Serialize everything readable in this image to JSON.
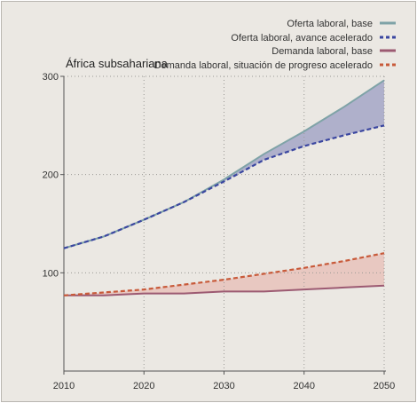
{
  "chart_data": {
    "type": "line",
    "title": "África subsahariana",
    "xlabel": "",
    "ylabel": "",
    "x": [
      2010,
      2015,
      2020,
      2025,
      2030,
      2035,
      2040,
      2045,
      2050
    ],
    "xlim": [
      2010,
      2050
    ],
    "ylim": [
      0,
      300
    ],
    "xticks": [
      "2010",
      "2020",
      "2030",
      "2040",
      "2050"
    ],
    "yticks": [
      "100",
      "200",
      "300"
    ],
    "ytick_values": [
      100,
      200,
      300
    ],
    "xtick_values": [
      2010,
      2020,
      2030,
      2040,
      2050
    ],
    "grid": true,
    "legend_position": "top-right",
    "series": [
      {
        "name": "Oferta laboral, base",
        "style": "solid",
        "color": "#7fa3a7",
        "values": [
          125,
          137,
          154,
          172,
          195,
          221,
          244,
          269,
          296
        ]
      },
      {
        "name": "Oferta laboral, avance acelerado",
        "style": "dashed",
        "color": "#3a46a0",
        "values": [
          125,
          137,
          154,
          172,
          193,
          215,
          229,
          240,
          250
        ]
      },
      {
        "name": "Demanda laboral, base",
        "style": "solid",
        "color": "#9c5a72",
        "values": [
          77,
          77,
          79,
          79,
          81,
          81,
          83,
          85,
          87
        ]
      },
      {
        "name": "Demanda laboral, situación de progreso acelerado",
        "style": "dashed",
        "color": "#c85a3a",
        "values": [
          77,
          80,
          83,
          88,
          93,
          99,
          105,
          112,
          120
        ]
      }
    ],
    "fills": [
      {
        "between": [
          0,
          1
        ],
        "color": "#a9aac8"
      },
      {
        "between": [
          3,
          2
        ],
        "color": "#e8c4bd"
      }
    ]
  }
}
